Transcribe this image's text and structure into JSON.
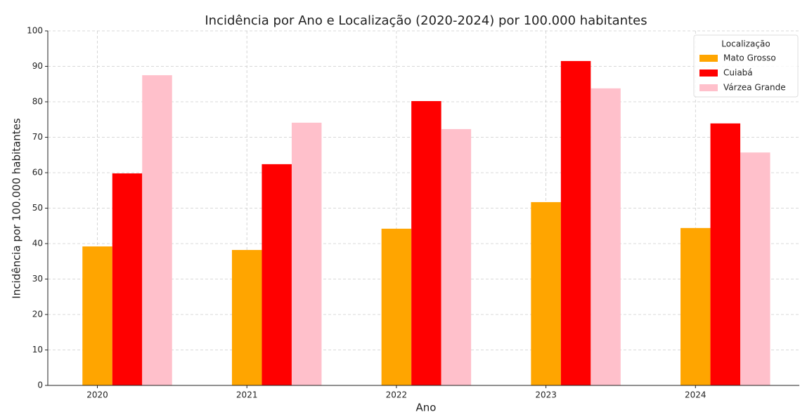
{
  "chart_data": {
    "type": "bar",
    "title": "Incidência por Ano e Localização (2020-2024) por 100.000 habitantes",
    "x_label": "Ano",
    "y_label": "Incidência por 100.000 habitantes",
    "categories": [
      "2020",
      "2021",
      "2022",
      "2023",
      "2024"
    ],
    "series": [
      {
        "name": "Mato Grosso",
        "color": "#ffa500",
        "values": [
          39.2,
          38.2,
          44.2,
          51.7,
          44.4
        ]
      },
      {
        "name": "Cuiabá",
        "color": "#ff0000",
        "values": [
          59.8,
          62.4,
          80.2,
          91.5,
          73.9
        ]
      },
      {
        "name": "Várzea Grande",
        "color": "#ffc0cb",
        "values": [
          87.5,
          74.1,
          72.3,
          83.8,
          65.7
        ]
      }
    ],
    "ylim": [
      0,
      100
    ],
    "yticks": [
      0,
      10,
      20,
      30,
      40,
      50,
      60,
      70,
      80,
      90,
      100
    ],
    "grid": true,
    "legend_title": "Localização",
    "legend_position": "upper right"
  }
}
